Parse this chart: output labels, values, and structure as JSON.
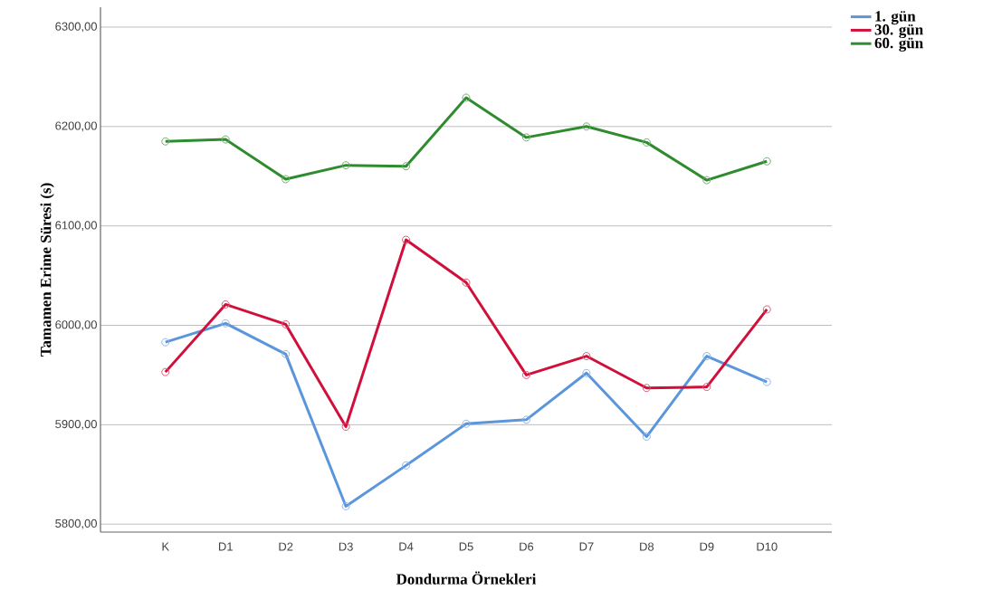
{
  "chart_data": {
    "type": "line",
    "xlabel": "Dondurma Örnekleri",
    "ylabel": "Tamamen Erime Süresi (s)",
    "categories": [
      "K",
      "D1",
      "D2",
      "D3",
      "D4",
      "D5",
      "D6",
      "D7",
      "D8",
      "D9",
      "D10"
    ],
    "series": [
      {
        "name": "1. gün",
        "color": "#5b96dd",
        "values": [
          5983,
          6002,
          5971,
          5818,
          5859,
          5901,
          5905,
          5952,
          5888,
          5969,
          5943
        ]
      },
      {
        "name": "30. gün",
        "color": "#d0103a",
        "values": [
          5953,
          6021,
          6001,
          5898,
          6086,
          6043,
          5950,
          5969,
          5937,
          5938,
          6016
        ]
      },
      {
        "name": "60. gün",
        "color": "#2e8b2e",
        "values": [
          6185,
          6187,
          6147,
          6161,
          6160,
          6229,
          6189,
          6200,
          6184,
          6146,
          6165
        ]
      }
    ],
    "ylim": [
      5792,
      6320
    ],
    "yticks": [
      {
        "value": 5800,
        "label": "5800,00"
      },
      {
        "value": 5900,
        "label": "5900,00"
      },
      {
        "value": 6000,
        "label": "6000,00"
      },
      {
        "value": 6100,
        "label": "6100,00"
      },
      {
        "value": 6200,
        "label": "6200,00"
      },
      {
        "value": 6300,
        "label": "6300,00"
      }
    ],
    "grid": "y",
    "legend": "top right",
    "marker": "circle",
    "line_style": "solid"
  }
}
